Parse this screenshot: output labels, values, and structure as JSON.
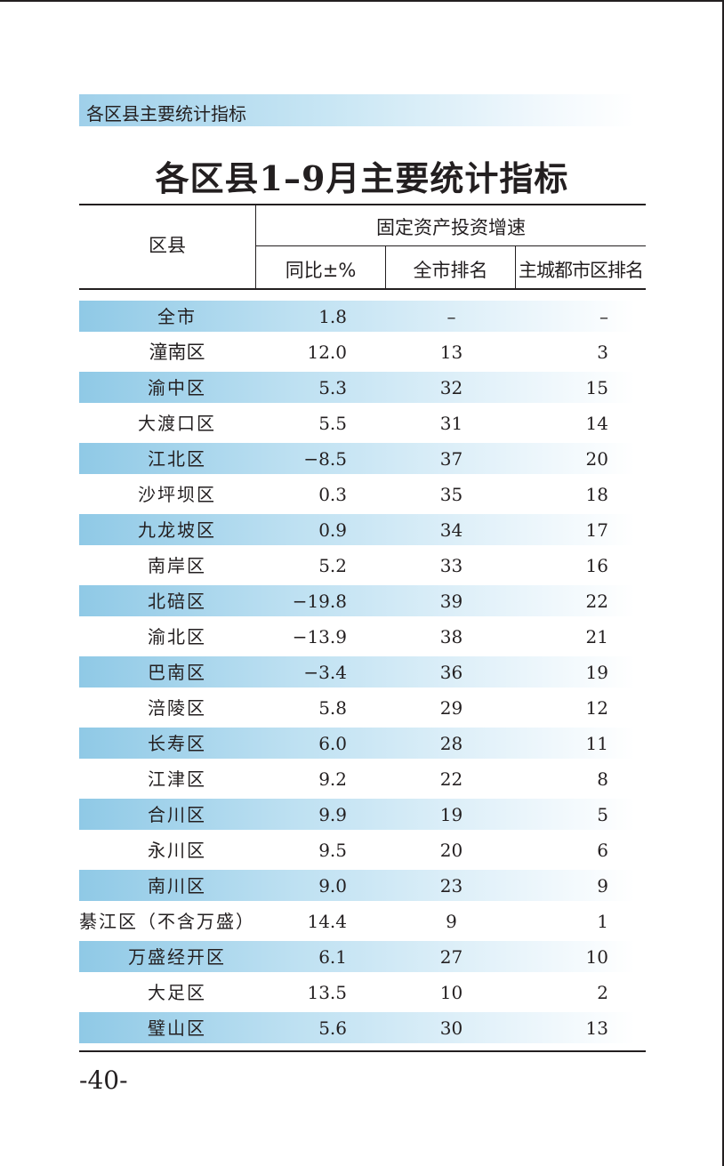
{
  "section_header": "各区县主要统计指标",
  "title": "各区县1–9月主要统计指标",
  "table": {
    "header": {
      "col_region": "区县",
      "group": "固定资产投资增速",
      "sub1": "同比±%",
      "sub2": "全市排名",
      "sub3": "主城都市区排名"
    },
    "rows": [
      {
        "name": "全市",
        "yoy": "1.8",
        "city_rank": "–",
        "main_rank": "–"
      },
      {
        "name": "潼南区",
        "yoy": "12.0",
        "city_rank": "13",
        "main_rank": "3"
      },
      {
        "name": "渝中区",
        "yoy": "5.3",
        "city_rank": "32",
        "main_rank": "15"
      },
      {
        "name": "大渡口区",
        "yoy": "5.5",
        "city_rank": "31",
        "main_rank": "14"
      },
      {
        "name": "江北区",
        "yoy": "−8.5",
        "city_rank": "37",
        "main_rank": "20"
      },
      {
        "name": "沙坪坝区",
        "yoy": "0.3",
        "city_rank": "35",
        "main_rank": "18"
      },
      {
        "name": "九龙坡区",
        "yoy": "0.9",
        "city_rank": "34",
        "main_rank": "17"
      },
      {
        "name": "南岸区",
        "yoy": "5.2",
        "city_rank": "33",
        "main_rank": "16"
      },
      {
        "name": "北碚区",
        "yoy": "−19.8",
        "city_rank": "39",
        "main_rank": "22"
      },
      {
        "name": "渝北区",
        "yoy": "−13.9",
        "city_rank": "38",
        "main_rank": "21"
      },
      {
        "name": "巴南区",
        "yoy": "−3.4",
        "city_rank": "36",
        "main_rank": "19"
      },
      {
        "name": "涪陵区",
        "yoy": "5.8",
        "city_rank": "29",
        "main_rank": "12"
      },
      {
        "name": "长寿区",
        "yoy": "6.0",
        "city_rank": "28",
        "main_rank": "11"
      },
      {
        "name": "江津区",
        "yoy": "9.2",
        "city_rank": "22",
        "main_rank": "8"
      },
      {
        "name": "合川区",
        "yoy": "9.9",
        "city_rank": "19",
        "main_rank": "5"
      },
      {
        "name": "永川区",
        "yoy": "9.5",
        "city_rank": "20",
        "main_rank": "6"
      },
      {
        "name": "南川区",
        "yoy": "9.0",
        "city_rank": "23",
        "main_rank": "9"
      },
      {
        "name": "綦江区（不含万盛）",
        "yoy": "14.4",
        "city_rank": "9",
        "main_rank": "1"
      },
      {
        "name": "万盛经开区",
        "yoy": "6.1",
        "city_rank": "27",
        "main_rank": "10"
      },
      {
        "name": "大足区",
        "yoy": "13.5",
        "city_rank": "10",
        "main_rank": "2"
      },
      {
        "name": "璧山区",
        "yoy": "5.6",
        "city_rank": "30",
        "main_rank": "13"
      }
    ]
  },
  "page_number": "-40-"
}
